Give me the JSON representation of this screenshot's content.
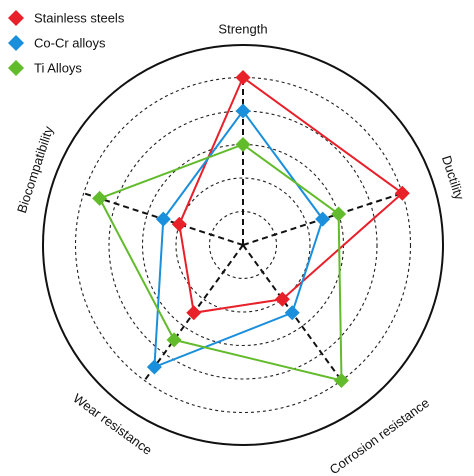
{
  "chart_data": {
    "type": "radar",
    "axes": [
      "Strength",
      "Ductility",
      "Corrosion resistance",
      "Wear resistance",
      "Biocompatibility"
    ],
    "range": [
      0,
      5
    ],
    "rings": 5,
    "grid": true,
    "legend_position": "top-left",
    "series": [
      {
        "name": "Stainless steels",
        "color": "#e8202a",
        "values": [
          5,
          5,
          2,
          2.5,
          2
        ]
      },
      {
        "name": "Co-Cr alloys",
        "color": "#1a8fdc",
        "values": [
          4,
          2.5,
          2.5,
          4.5,
          2.5
        ]
      },
      {
        "name": "Ti Alloys",
        "color": "#62bb2b",
        "values": [
          3,
          3,
          5,
          3.5,
          4.5
        ]
      }
    ]
  }
}
